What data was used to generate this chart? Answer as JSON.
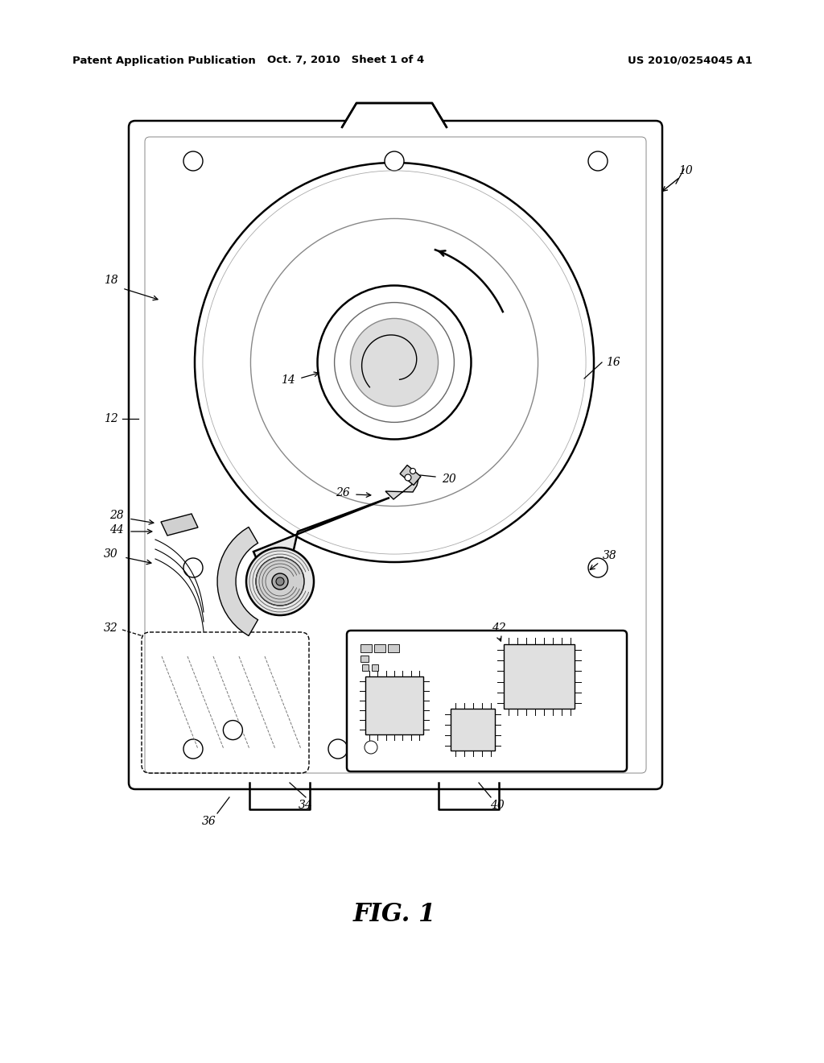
{
  "header_left": "Patent Application Publication",
  "header_mid": "Oct. 7, 2010   Sheet 1 of 4",
  "header_right": "US 2010/0254045 A1",
  "fig_label": "FIG. 1",
  "background_color": "#ffffff",
  "line_color": "#000000",
  "lw_main": 1.8,
  "lw_thin": 1.0,
  "lw_med": 1.4
}
